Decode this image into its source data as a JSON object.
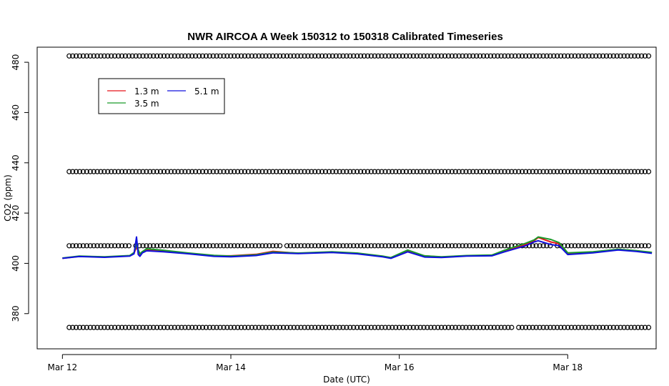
{
  "chart_data": {
    "type": "line",
    "title": "NWR AIRCOA A  Week 150312 to 150318  Calibrated Timeseries",
    "xlabel": "Date (UTC)",
    "ylabel": "CO2 (ppm)",
    "x_unit": "days since Mar 12 00:00 UTC",
    "xlim": [
      -0.3,
      7.05
    ],
    "ylim": [
      366,
      486
    ],
    "x_ticks": [
      {
        "value": 0,
        "label": "Mar 12"
      },
      {
        "value": 2,
        "label": "Mar 14"
      },
      {
        "value": 4,
        "label": "Mar 16"
      },
      {
        "value": 6,
        "label": "Mar 18"
      }
    ],
    "y_ticks": [
      380,
      400,
      420,
      440,
      460,
      480
    ],
    "grid": false,
    "legend": {
      "position": "top-left",
      "entries": [
        {
          "label": "1.3 m",
          "color": "#e8141b"
        },
        {
          "label": "5.1 m",
          "color": "#1010dd"
        },
        {
          "label": "3.5 m",
          "color": "#1a9a2a"
        }
      ]
    },
    "calibration_points": {
      "marker": "open-circle",
      "levels": [
        482.5,
        436.5,
        407,
        374.5
      ],
      "x_range": [
        0.08,
        7.0
      ],
      "spacing_days": 0.0417,
      "gaps": [
        {
          "level": 407,
          "from": 0.8,
          "to": 0.85
        },
        {
          "level": 407,
          "from": 2.6,
          "to": 2.65
        },
        {
          "level": 407,
          "from": 5.8,
          "to": 5.85
        },
        {
          "level": 374.5,
          "from": 5.35,
          "to": 5.4
        }
      ]
    },
    "series": [
      {
        "name": "1.3 m",
        "color": "#e8141b",
        "x": [
          0,
          0.2,
          0.5,
          0.8,
          0.85,
          0.88,
          0.9,
          0.92,
          0.95,
          1.0,
          1.2,
          1.5,
          1.8,
          2.0,
          2.3,
          2.5,
          2.8,
          3.2,
          3.5,
          3.8,
          3.9,
          4.1,
          4.3,
          4.5,
          4.8,
          5.1,
          5.25,
          5.5,
          5.6,
          5.65,
          5.8,
          5.9,
          6.0,
          6.3,
          6.6,
          6.8,
          7.0
        ],
        "y": [
          402.0,
          402.8,
          402.5,
          403.0,
          404.0,
          406.5,
          405.0,
          403.5,
          404.5,
          405.5,
          404.8,
          404.0,
          403.0,
          403.0,
          403.6,
          404.8,
          404.0,
          404.5,
          404.0,
          402.8,
          402.2,
          405.0,
          403.0,
          402.5,
          403.0,
          403.2,
          405.0,
          407.5,
          409.0,
          410.3,
          408.5,
          407.8,
          404.0,
          404.5,
          405.5,
          405.0,
          404.3
        ]
      },
      {
        "name": "3.5 m",
        "color": "#1a9a2a",
        "x": [
          0,
          0.2,
          0.5,
          0.8,
          0.85,
          0.88,
          0.9,
          0.92,
          0.95,
          1.0,
          1.2,
          1.5,
          1.8,
          2.0,
          2.3,
          2.5,
          2.8,
          3.2,
          3.5,
          3.8,
          3.9,
          4.1,
          4.3,
          4.5,
          4.8,
          5.1,
          5.25,
          5.5,
          5.6,
          5.65,
          5.8,
          5.9,
          6.0,
          6.3,
          6.6,
          6.8,
          7.0
        ],
        "y": [
          402.1,
          402.9,
          402.6,
          403.1,
          404.3,
          407.5,
          405.5,
          403.8,
          404.7,
          405.8,
          405.2,
          404.1,
          403.2,
          402.9,
          403.4,
          404.5,
          404.1,
          404.6,
          404.1,
          402.9,
          402.3,
          405.3,
          403.0,
          402.6,
          403.1,
          403.3,
          405.2,
          408.0,
          409.3,
          410.5,
          409.5,
          408.2,
          404.2,
          404.6,
          405.6,
          405.1,
          404.4
        ]
      },
      {
        "name": "5.1 m",
        "color": "#1010dd",
        "x": [
          0,
          0.2,
          0.5,
          0.8,
          0.85,
          0.88,
          0.9,
          0.92,
          0.95,
          1.0,
          1.2,
          1.5,
          1.8,
          2.0,
          2.3,
          2.5,
          2.8,
          3.2,
          3.5,
          3.8,
          3.9,
          4.1,
          4.3,
          4.5,
          4.8,
          5.1,
          5.25,
          5.5,
          5.6,
          5.65,
          5.8,
          5.9,
          6.0,
          6.3,
          6.6,
          6.8,
          7.0
        ],
        "y": [
          402.0,
          402.7,
          402.4,
          402.9,
          403.8,
          410.5,
          403.5,
          402.8,
          404.2,
          405.0,
          404.6,
          403.8,
          402.8,
          402.6,
          403.1,
          404.2,
          403.9,
          404.3,
          403.8,
          402.6,
          402.0,
          404.6,
          402.5,
          402.3,
          402.9,
          403.0,
          404.6,
          407.0,
          408.5,
          409.0,
          407.5,
          407.0,
          403.5,
          404.2,
          405.3,
          404.8,
          404.0
        ]
      }
    ]
  }
}
